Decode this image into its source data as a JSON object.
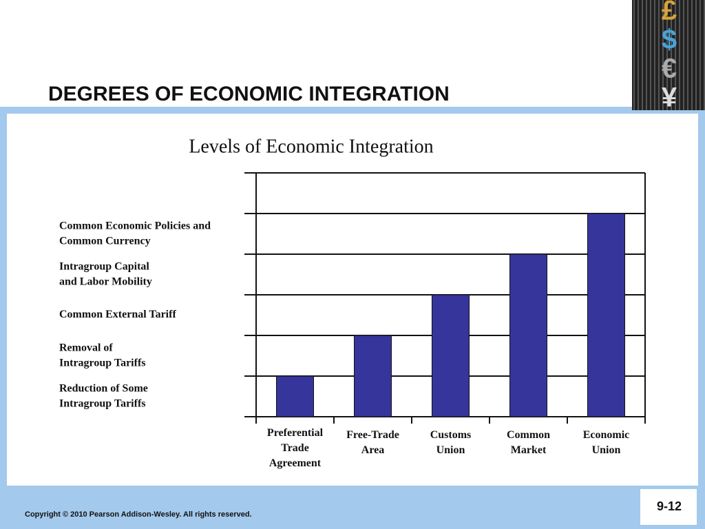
{
  "slide": {
    "title": "DEGREES OF ECONOMIC INTEGRATION",
    "footer": "Copyright © 2010 Pearson Addison-Wesley. All rights reserved.",
    "page_number": "9-12",
    "logo_symbols": [
      "£",
      "$",
      "€",
      "¥"
    ]
  },
  "chart_data": {
    "type": "bar",
    "title": "Levels of Economic Integration",
    "categories": [
      "Preferential\nTrade\nAgreement",
      "Free-Trade\nArea",
      "Customs\nUnion",
      "Common\nMarket",
      "Economic\nUnion"
    ],
    "values": [
      1,
      2,
      3,
      4,
      5
    ],
    "color": "#35359b",
    "ylim": [
      0,
      6
    ],
    "yticks": [
      {
        "value": 0.5,
        "label": "Reduction of Some\nIntragroup Tariffs"
      },
      {
        "value": 1.5,
        "label": "Removal of\nIntragroup Tariffs"
      },
      {
        "value": 2.5,
        "label": "Common External Tariff"
      },
      {
        "value": 3.5,
        "label": "Intragroup Capital\nand Labor Mobility"
      },
      {
        "value": 4.5,
        "label": "Common Economic Policies and\nCommon Currency"
      }
    ],
    "gridlines": [
      0,
      1,
      2,
      3,
      4,
      5,
      6
    ],
    "grid": true
  }
}
